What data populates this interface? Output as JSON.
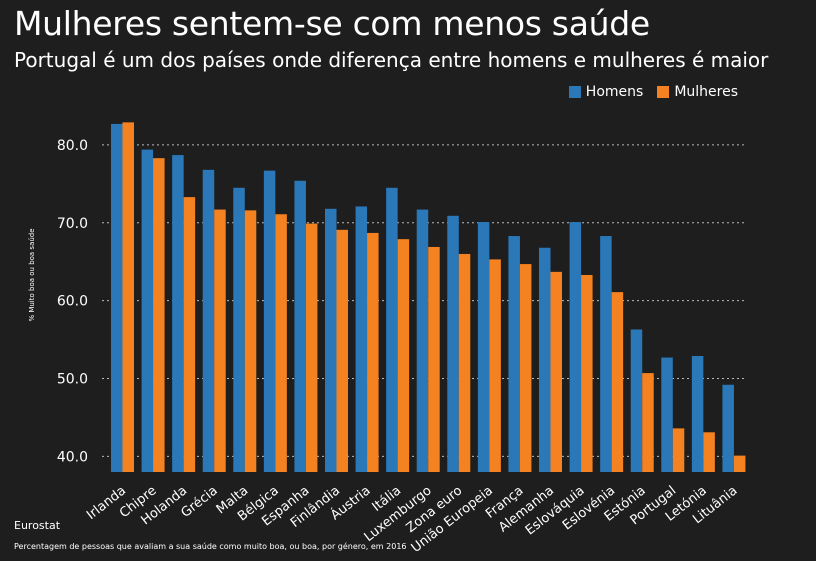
{
  "header": {
    "title": "Mulheres sentem-se com menos saúde",
    "subtitle": "Portugal é um dos países onde diferença entre homens e mulheres é maior"
  },
  "footer": {
    "source": "Eurostat",
    "note": "Percentagem de pessoas que avaliam a sua saúde como muito boa, ou boa, por género, em 2016"
  },
  "colors": {
    "homens": "#2a78b8",
    "mulheres": "#f58220",
    "background": "#1e1e1e",
    "grid": "#bbbbbb"
  },
  "chart_data": {
    "type": "bar",
    "title": "Mulheres sentem-se com menos saúde",
    "subtitle": "Portugal é um dos países onde diferença entre homens e mulheres é maior",
    "xlabel": "",
    "ylabel": "% Muito boa ou boa saúde",
    "ylim": [
      38.0,
      85.0
    ],
    "yticks": [
      "40.0",
      "50.0",
      "60.0",
      "70.0",
      "80.0"
    ],
    "grid": true,
    "legend_position": "top-right",
    "categories": [
      "Irlanda",
      "Chipre",
      "Holanda",
      "Grécia",
      "Malta",
      "Bélgica",
      "Espanha",
      "Finlândia",
      "Áustria",
      "Itália",
      "Luxemburgo",
      "Zona euro",
      "União Europeia",
      "França",
      "Alemanha",
      "Eslováquia",
      "Eslovénia",
      "Estónia",
      "Portugal",
      "Letónia",
      "Lituânia"
    ],
    "series": [
      {
        "name": "Homens",
        "values": [
          82.7,
          79.4,
          78.7,
          76.8,
          74.5,
          76.7,
          75.4,
          71.8,
          72.1,
          74.5,
          71.7,
          70.9,
          70.1,
          68.3,
          66.8,
          70.1,
          68.3,
          56.3,
          52.7,
          52.9,
          49.2
        ]
      },
      {
        "name": "Mulheres",
        "values": [
          82.9,
          78.3,
          73.3,
          71.7,
          71.6,
          71.1,
          69.9,
          69.1,
          68.7,
          67.9,
          66.9,
          66.0,
          65.3,
          64.7,
          63.7,
          63.3,
          61.1,
          50.7,
          43.6,
          43.1,
          40.1
        ]
      }
    ]
  }
}
